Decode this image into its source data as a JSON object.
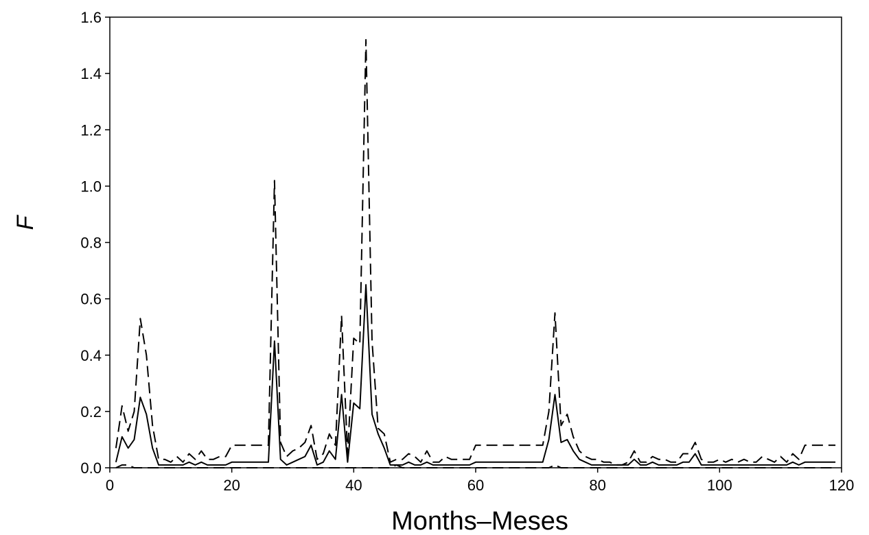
{
  "chart_data": {
    "type": "line",
    "title": "",
    "xlabel": "Months–Meses",
    "ylabel": "F",
    "xlim": [
      0,
      120
    ],
    "ylim": [
      0,
      1.6
    ],
    "x_ticks": [
      "0",
      "20",
      "40",
      "60",
      "80",
      "100",
      "120"
    ],
    "y_ticks": [
      "0.0",
      "0.2",
      "0.4",
      "0.6",
      "0.8",
      "1.0",
      "1.2",
      "1.4",
      "1.6"
    ],
    "grid": false,
    "legend": "none",
    "series": [
      {
        "style": "solid",
        "color": "#000000",
        "x": [
          1,
          2,
          3,
          4,
          5,
          6,
          7,
          8,
          9,
          10,
          11,
          12,
          13,
          14,
          15,
          16,
          17,
          18,
          19,
          20,
          21,
          22,
          23,
          24,
          25,
          26,
          27,
          28,
          29,
          30,
          31,
          32,
          33,
          34,
          35,
          36,
          37,
          38,
          39,
          40,
          41,
          42,
          43,
          44,
          45,
          46,
          47,
          48,
          49,
          50,
          51,
          52,
          53,
          54,
          55,
          56,
          57,
          58,
          59,
          60,
          61,
          62,
          63,
          64,
          65,
          66,
          67,
          68,
          69,
          70,
          71,
          72,
          73,
          74,
          75,
          76,
          77,
          78,
          79,
          80,
          81,
          82,
          83,
          84,
          85,
          86,
          87,
          88,
          89,
          90,
          91,
          92,
          93,
          94,
          95,
          96,
          97,
          98,
          99,
          100,
          101,
          102,
          103,
          104,
          105,
          106,
          107,
          108,
          109,
          110,
          111,
          112,
          113,
          114,
          115,
          116,
          117,
          118,
          119
        ],
        "y": [
          0.02,
          0.11,
          0.07,
          0.1,
          0.25,
          0.19,
          0.07,
          0.01,
          0.01,
          0.01,
          0.01,
          0.01,
          0.02,
          0.01,
          0.02,
          0.01,
          0.01,
          0.01,
          0.01,
          0.02,
          0.02,
          0.02,
          0.02,
          0.02,
          0.02,
          0.02,
          0.45,
          0.03,
          0.01,
          0.02,
          0.03,
          0.04,
          0.08,
          0.01,
          0.02,
          0.06,
          0.03,
          0.26,
          0.02,
          0.23,
          0.21,
          0.65,
          0.19,
          0.12,
          0.07,
          0.01,
          0.01,
          0.01,
          0.02,
          0.01,
          0.01,
          0.02,
          0.01,
          0.01,
          0.01,
          0.01,
          0.01,
          0.01,
          0.01,
          0.02,
          0.02,
          0.02,
          0.02,
          0.02,
          0.02,
          0.02,
          0.02,
          0.02,
          0.02,
          0.02,
          0.02,
          0.1,
          0.26,
          0.09,
          0.1,
          0.06,
          0.03,
          0.02,
          0.01,
          0.01,
          0.01,
          0.01,
          0.01,
          0.01,
          0.01,
          0.03,
          0.01,
          0.01,
          0.02,
          0.01,
          0.01,
          0.01,
          0.01,
          0.02,
          0.02,
          0.05,
          0.01,
          0.01,
          0.01,
          0.01,
          0.01,
          0.01,
          0.01,
          0.01,
          0.01,
          0.01,
          0.01,
          0.01,
          0.01,
          0.01,
          0.01,
          0.02,
          0.01,
          0.02,
          0.02,
          0.02,
          0.02,
          0.02,
          0.02
        ]
      },
      {
        "style": "dashed-upper",
        "color": "#000000",
        "x": [
          1,
          2,
          3,
          4,
          5,
          6,
          7,
          8,
          9,
          10,
          11,
          12,
          13,
          14,
          15,
          16,
          17,
          18,
          19,
          20,
          21,
          22,
          23,
          24,
          25,
          26,
          27,
          28,
          29,
          30,
          31,
          32,
          33,
          34,
          35,
          36,
          37,
          38,
          39,
          40,
          41,
          42,
          43,
          44,
          45,
          46,
          47,
          48,
          49,
          50,
          51,
          52,
          53,
          54,
          55,
          56,
          57,
          58,
          59,
          60,
          61,
          62,
          63,
          64,
          65,
          66,
          67,
          68,
          69,
          70,
          71,
          72,
          73,
          74,
          75,
          76,
          77,
          78,
          79,
          80,
          81,
          82,
          83,
          84,
          85,
          86,
          87,
          88,
          89,
          90,
          91,
          92,
          93,
          94,
          95,
          96,
          97,
          98,
          99,
          100,
          101,
          102,
          103,
          104,
          105,
          106,
          107,
          108,
          109,
          110,
          111,
          112,
          113,
          114,
          115,
          116,
          117,
          118,
          119
        ],
        "y": [
          0.07,
          0.22,
          0.13,
          0.2,
          0.53,
          0.4,
          0.15,
          0.03,
          0.03,
          0.02,
          0.04,
          0.02,
          0.05,
          0.03,
          0.06,
          0.03,
          0.03,
          0.04,
          0.04,
          0.08,
          0.08,
          0.08,
          0.08,
          0.08,
          0.08,
          0.08,
          1.02,
          0.09,
          0.04,
          0.06,
          0.07,
          0.09,
          0.15,
          0.03,
          0.05,
          0.12,
          0.08,
          0.54,
          0.05,
          0.46,
          0.44,
          1.52,
          0.45,
          0.14,
          0.12,
          0.02,
          0.03,
          0.03,
          0.05,
          0.04,
          0.02,
          0.06,
          0.02,
          0.02,
          0.04,
          0.03,
          0.03,
          0.03,
          0.03,
          0.08,
          0.08,
          0.08,
          0.08,
          0.08,
          0.08,
          0.08,
          0.08,
          0.08,
          0.08,
          0.08,
          0.08,
          0.2,
          0.55,
          0.15,
          0.19,
          0.11,
          0.06,
          0.04,
          0.03,
          0.03,
          0.02,
          0.02,
          0.01,
          0.01,
          0.02,
          0.06,
          0.02,
          0.02,
          0.04,
          0.03,
          0.03,
          0.02,
          0.02,
          0.05,
          0.05,
          0.09,
          0.03,
          0.02,
          0.02,
          0.03,
          0.02,
          0.03,
          0.02,
          0.03,
          0.02,
          0.02,
          0.04,
          0.03,
          0.02,
          0.04,
          0.02,
          0.05,
          0.03,
          0.08,
          0.08,
          0.08,
          0.08,
          0.08,
          0.08
        ]
      },
      {
        "style": "dashed-lower",
        "color": "#000000",
        "x": [
          1,
          2,
          3,
          4,
          5,
          6,
          7,
          8,
          9,
          10,
          11,
          12,
          13,
          14,
          15,
          16,
          17,
          18,
          19,
          20,
          21,
          22,
          23,
          24,
          25,
          26,
          27,
          28,
          29,
          30,
          31,
          32,
          33,
          34,
          35,
          36,
          37,
          38,
          39,
          40,
          41,
          42,
          43,
          44,
          45,
          46,
          47,
          48,
          49,
          50,
          51,
          52,
          53,
          54,
          55,
          56,
          57,
          58,
          59,
          60,
          61,
          62,
          63,
          64,
          65,
          66,
          67,
          68,
          69,
          70,
          71,
          72,
          73,
          74,
          75,
          76,
          77,
          78,
          79,
          80,
          81,
          82,
          83,
          84,
          85,
          86,
          87,
          88,
          89,
          90,
          91,
          92,
          93,
          94,
          95,
          96,
          97,
          98,
          99,
          100,
          101,
          102,
          103,
          104,
          105,
          106,
          107,
          108,
          109,
          110,
          111,
          112,
          113,
          114,
          115,
          116,
          117,
          118,
          119
        ],
        "y": [
          0.0,
          0.01,
          0.01,
          0.0,
          0.0,
          0.0,
          0.0,
          0.0,
          0.0,
          0.0,
          0.0,
          0.0,
          0.0,
          0.0,
          0.0,
          0.0,
          0.0,
          0.0,
          0.0,
          0.0,
          0.0,
          0.0,
          0.0,
          0.0,
          0.0,
          0.0,
          0.0,
          0.0,
          0.0,
          0.0,
          0.0,
          0.0,
          0.0,
          0.0,
          0.0,
          0.0,
          0.0,
          0.0,
          0.0,
          0.0,
          0.0,
          0.0,
          0.0,
          0.0,
          0.0,
          0.0,
          0.01,
          0.0,
          0.0,
          0.0,
          0.0,
          0.0,
          0.0,
          0.0,
          0.0,
          0.0,
          0.0,
          0.0,
          0.0,
          0.0,
          0.0,
          0.0,
          0.0,
          0.0,
          0.0,
          0.0,
          0.0,
          0.0,
          0.0,
          0.0,
          0.0,
          0.0,
          0.01,
          0.0,
          0.0,
          0.0,
          0.0,
          0.0,
          0.0,
          0.0,
          0.0,
          0.0,
          0.0,
          0.0,
          0.0,
          0.0,
          0.0,
          0.0,
          0.0,
          0.0,
          0.0,
          0.0,
          0.0,
          0.0,
          0.0,
          0.0,
          0.0,
          0.0,
          0.0,
          0.0,
          0.0,
          0.0,
          0.0,
          0.0,
          0.0,
          0.0,
          0.0,
          0.0,
          0.0,
          0.0,
          0.0,
          0.0,
          0.0,
          0.0,
          0.0,
          0.0,
          0.0,
          0.0,
          0.0
        ]
      }
    ]
  }
}
